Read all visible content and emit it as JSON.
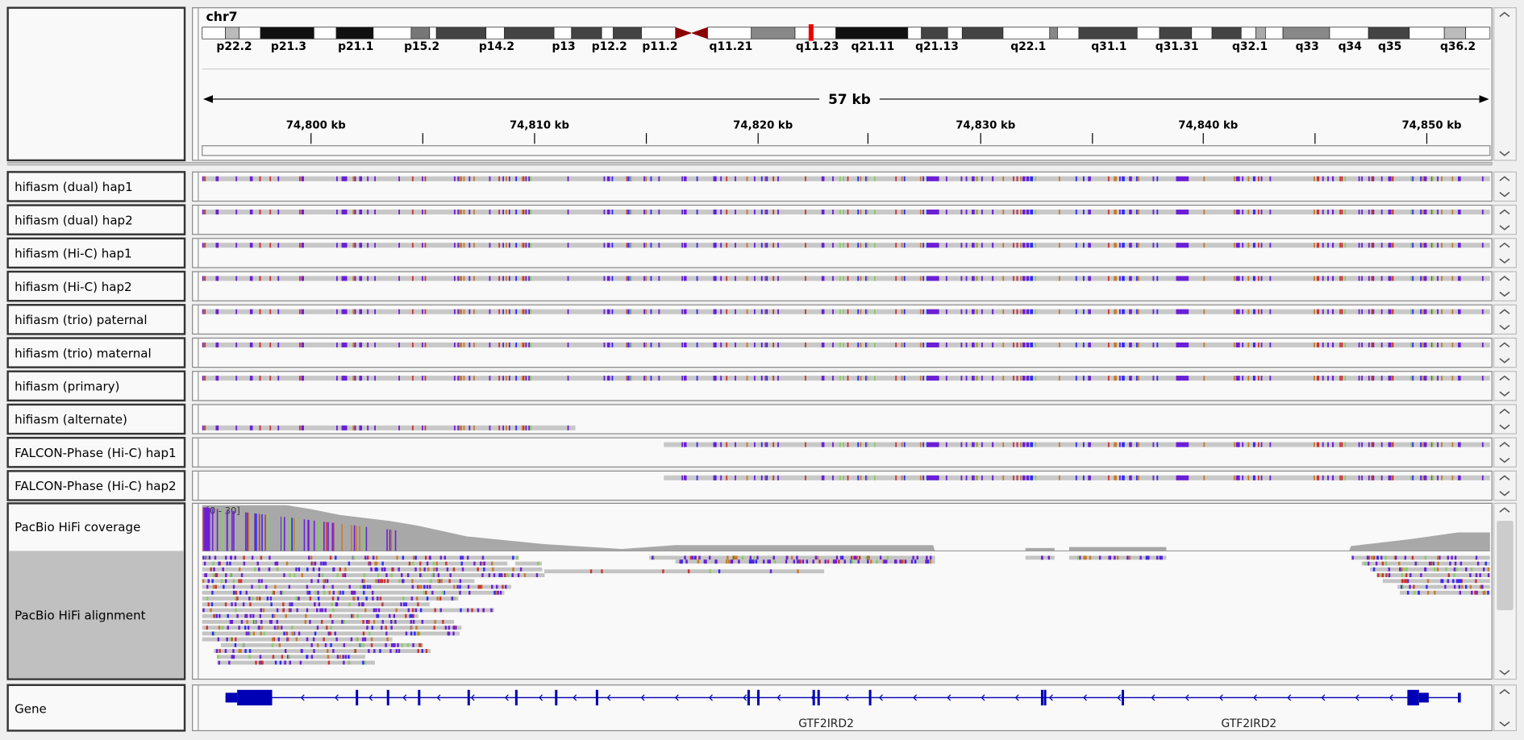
{
  "header": {
    "chromosome": "chr7",
    "cytobands": [
      "p22.2",
      "p21.3",
      "p21.1",
      "p15.2",
      "p14.2",
      "p13",
      "p12.2",
      "p11.2",
      "q11.21",
      "q11.23",
      "q21.11",
      "q21.13",
      "q22.1",
      "q31.1",
      "q31.31",
      "q32.1",
      "q33",
      "q34",
      "q35",
      "q36.2"
    ],
    "span": "57 kb",
    "ruler": [
      "74,800 kb",
      "74,810 kb",
      "74,820 kb",
      "74,830 kb",
      "74,840 kb",
      "74,850 kb"
    ]
  },
  "tracks": [
    {
      "name": "hifiasm (dual) hap1"
    },
    {
      "name": "hifiasm (dual) hap2"
    },
    {
      "name": "hifiasm (Hi-C) hap1"
    },
    {
      "name": "hifiasm (Hi-C) hap2"
    },
    {
      "name": "hifiasm (trio) paternal"
    },
    {
      "name": "hifiasm (trio) maternal"
    },
    {
      "name": "hifiasm (primary)"
    },
    {
      "name": "hifiasm (alternate)"
    },
    {
      "name": "FALCON-Phase (Hi-C) hap1"
    },
    {
      "name": "FALCON-Phase (Hi-C) hap2"
    }
  ],
  "coverage": {
    "name": "PacBio HiFi coverage",
    "range": "[0 - 30]"
  },
  "alignment": {
    "name": "PacBio HiFi alignment"
  },
  "gene": {
    "name": "Gene",
    "labels": [
      "GTF2IRD2",
      "GTF2IRD2"
    ]
  }
}
